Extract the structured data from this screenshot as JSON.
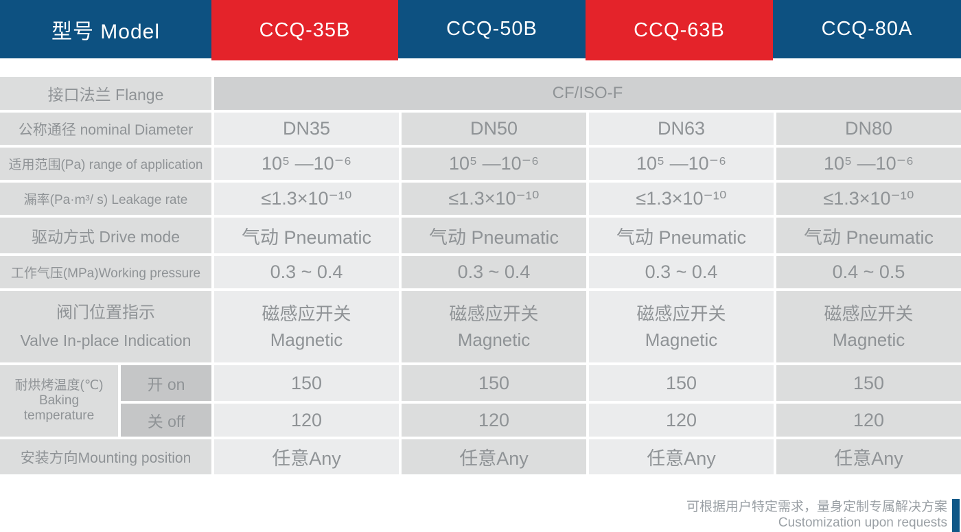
{
  "colors": {
    "header-blue": "#0d5181",
    "header-red": "#e4232a",
    "header-text": "#ffffff",
    "label-bg": "#dcdddd",
    "cell-light-bg": "#ebeced",
    "cell-dark-bg": "#dcdddd",
    "flange-span-bg": "#cfd0d1",
    "subcell-bg": "#c5c6c7",
    "table-text": "#8f9396",
    "footer-text": "#9aa0a5",
    "footer-bar": "#0f5787",
    "page-bg": "#ffffff"
  },
  "header": {
    "model_label": "型号 Model",
    "columns": [
      {
        "label": "CCQ-35B"
      },
      {
        "label": "CCQ-50B"
      },
      {
        "label": "CCQ-63B"
      },
      {
        "label": "CCQ-80A"
      }
    ]
  },
  "rows": {
    "flange": {
      "label": "接口法兰 Flange",
      "value": "CF/ISO-F"
    },
    "diameter": {
      "label": "公称通径 nominal Diameter",
      "values": [
        "DN35",
        "DN50",
        "DN63",
        "DN80"
      ]
    },
    "range": {
      "label": "适用范围(Pa) range of application",
      "values": [
        "10⁵ —10⁻⁶",
        "10⁵ —10⁻⁶",
        "10⁵ —10⁻⁶",
        "10⁵ —10⁻⁶"
      ]
    },
    "leakage": {
      "label": "漏率(Pa·m³/ s) Leakage rate",
      "values": [
        "≤1.3×10⁻¹⁰",
        "≤1.3×10⁻¹⁰",
        "≤1.3×10⁻¹⁰",
        "≤1.3×10⁻¹⁰"
      ]
    },
    "drive": {
      "label": "驱动方式 Drive mode",
      "values": [
        "气动 Pneumatic",
        "气动 Pneumatic",
        "气动 Pneumatic",
        "气动 Pneumatic"
      ]
    },
    "pressure": {
      "label": "工作气压(MPa)Working pressure",
      "values": [
        "0.3 ~ 0.4",
        "0.3 ~ 0.4",
        "0.3 ~ 0.4",
        "0.4 ~ 0.5"
      ]
    },
    "indication": {
      "label_zh": "阀门位置指示",
      "label_en": "Valve In-place Indication",
      "values": [
        {
          "zh": "磁感应开关",
          "en": "Magnetic"
        },
        {
          "zh": "磁感应开关",
          "en": "Magnetic"
        },
        {
          "zh": "磁感应开关",
          "en": "Magnetic"
        },
        {
          "zh": "磁感应开关",
          "en": "Magnetic"
        }
      ]
    },
    "baking": {
      "label_zh": "耐烘烤温度(℃)",
      "label_en1": "Baking",
      "label_en2": "temperature",
      "on_label": "开 on",
      "off_label": "关 off",
      "on_values": [
        "150",
        "150",
        "150",
        "150"
      ],
      "off_values": [
        "120",
        "120",
        "120",
        "120"
      ]
    },
    "mounting": {
      "label": "安装方向Mounting position",
      "values": [
        "任意Any",
        "任意Any",
        "任意Any",
        "任意Any"
      ]
    }
  },
  "footer": {
    "line_zh": "可根据用户特定需求，量身定制专属解决方案",
    "line_en": "Customization upon requests"
  }
}
